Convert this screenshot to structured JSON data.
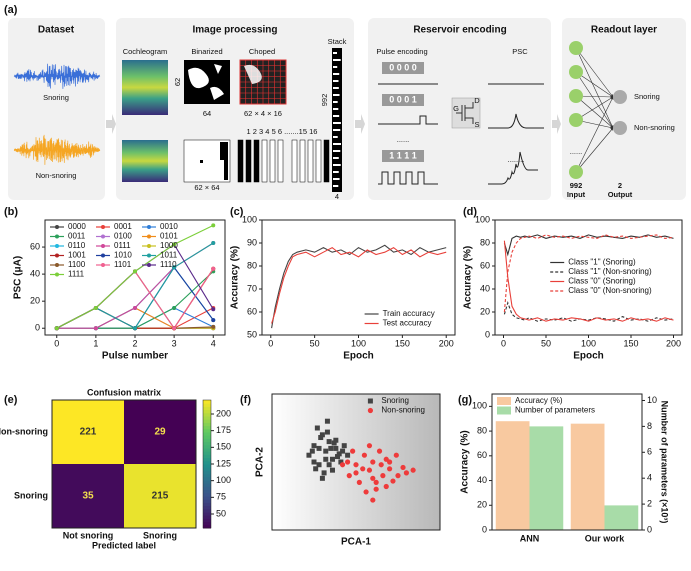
{
  "panel_a": {
    "label": "(a)",
    "dataset": {
      "title": "Dataset",
      "snoring": "Snoring",
      "non_snoring": "Non-snoring"
    },
    "image_processing": {
      "title": "Image processing",
      "cochleogram": "Cochleogram",
      "binarized": "Binarized",
      "choped": "Choped",
      "stack": "Stack",
      "dim_62": "62",
      "dim_64": "64",
      "shape_chopped": "62 × 4 × 16",
      "shape_binarized": "62 × 64",
      "chunks": "1 2 3 4 5 6 .......15 16",
      "stack_height": "992",
      "stack_width": "4"
    },
    "reservoir": {
      "title": "Reservoir encoding",
      "pulse_encoding": "Pulse encoding",
      "codes": [
        "0 0 0 0",
        "0 0 0 1",
        "1 1 1 1"
      ],
      "ellipsis": "......",
      "psc": "PSC",
      "gate": "G",
      "drain": "D",
      "source": "S",
      "psc_ellipsis": "........"
    },
    "readout": {
      "title": "Readout layer",
      "outputs": [
        "Snoring",
        "Non-snoring"
      ],
      "input_count": "992",
      "input": "Input",
      "output_count": "2",
      "output": "Output",
      "ellipsis": "......"
    }
  },
  "chart_data": [
    {
      "type": "line",
      "panel": "(b)",
      "xlabel": "Pulse number",
      "ylabel": "PSC (μA)",
      "x": [
        0,
        1,
        2,
        3,
        4
      ],
      "xlim": [
        -0.3,
        4.3
      ],
      "xticks": [
        0,
        1,
        2,
        3,
        4
      ],
      "ylim": [
        -5,
        80
      ],
      "yticks": [
        0,
        20,
        40,
        60
      ],
      "legend": "upper left",
      "series": [
        {
          "name": "0000",
          "color": "#444444",
          "marker": "circle",
          "values": [
            0,
            0,
            0,
            0,
            0
          ]
        },
        {
          "name": "0001",
          "color": "#e8403a",
          "marker": "circle",
          "values": [
            0,
            0,
            0,
            0,
            15
          ]
        },
        {
          "name": "0010",
          "color": "#2f7ed8",
          "marker": "circle",
          "values": [
            0,
            0,
            0,
            15,
            1
          ]
        },
        {
          "name": "0011",
          "color": "#2ca05a",
          "marker": "circle",
          "values": [
            0,
            0,
            0,
            15,
            42
          ]
        },
        {
          "name": "0100",
          "color": "#b070d0",
          "marker": "circle",
          "values": [
            0,
            0,
            15,
            0,
            0
          ]
        },
        {
          "name": "0101",
          "color": "#f08c1a",
          "marker": "circle",
          "values": [
            0,
            0,
            15,
            0,
            44
          ]
        },
        {
          "name": "0110",
          "color": "#22b8e0",
          "marker": "circle",
          "values": [
            0,
            0,
            15,
            45,
            6
          ]
        },
        {
          "name": "0111",
          "color": "#d0489a",
          "marker": "circle",
          "values": [
            0,
            0,
            15,
            45,
            63
          ]
        },
        {
          "name": "1000",
          "color": "#c8c020",
          "marker": "circle",
          "values": [
            0,
            15,
            0,
            0,
            0
          ]
        },
        {
          "name": "1001",
          "color": "#b22222",
          "marker": "circle",
          "values": [
            0,
            15,
            0,
            0,
            44
          ]
        },
        {
          "name": "1010",
          "color": "#1f3f9f",
          "marker": "circle",
          "values": [
            0,
            15,
            0,
            45,
            6
          ]
        },
        {
          "name": "1011",
          "color": "#20a0a0",
          "marker": "circle",
          "values": [
            0,
            15,
            0,
            45,
            63
          ]
        },
        {
          "name": "1100",
          "color": "#8b5a2b",
          "marker": "circle",
          "values": [
            0,
            15,
            42,
            0,
            1
          ]
        },
        {
          "name": "1101",
          "color": "#f06090",
          "marker": "circle",
          "values": [
            0,
            15,
            42,
            0,
            44
          ]
        },
        {
          "name": "1110",
          "color": "#5a2a8a",
          "marker": "circle",
          "values": [
            0,
            15,
            42,
            62,
            14
          ]
        },
        {
          "name": "1111",
          "color": "#7ccf3a",
          "marker": "circle",
          "values": [
            0,
            15,
            42,
            62,
            76
          ]
        }
      ]
    },
    {
      "type": "line",
      "panel": "(c)",
      "xlabel": "Epoch",
      "ylabel": "Accuracy (%)",
      "x": [
        1,
        5,
        10,
        15,
        20,
        25,
        30,
        40,
        50,
        60,
        70,
        80,
        90,
        100,
        110,
        120,
        130,
        140,
        150,
        160,
        170,
        180,
        190,
        200
      ],
      "xlim": [
        -10,
        210
      ],
      "xticks": [
        0,
        50,
        100,
        150,
        200
      ],
      "ylim": [
        50,
        100
      ],
      "yticks": [
        50,
        60,
        70,
        80,
        90,
        100
      ],
      "legend": "lower right",
      "series": [
        {
          "name": "Train accuracy",
          "color": "#444444",
          "values": [
            53,
            62,
            70,
            77,
            82,
            85,
            86,
            87,
            86,
            88,
            86,
            87,
            85,
            88,
            86,
            87,
            89,
            86,
            87,
            85,
            88,
            86,
            87,
            88
          ]
        },
        {
          "name": "Test accuracy",
          "color": "#e8403a",
          "values": [
            55,
            60,
            68,
            75,
            80,
            84,
            85,
            86,
            84,
            86,
            88,
            85,
            86,
            84,
            87,
            85,
            86,
            88,
            85,
            87,
            84,
            86,
            85,
            86
          ]
        }
      ]
    },
    {
      "type": "line",
      "panel": "(d)",
      "xlabel": "Epoch",
      "ylabel": "Accuracy (%)",
      "x": [
        1,
        5,
        10,
        15,
        20,
        25,
        30,
        40,
        50,
        60,
        70,
        80,
        90,
        100,
        110,
        120,
        130,
        140,
        150,
        160,
        170,
        180,
        190,
        200
      ],
      "xlim": [
        -10,
        210
      ],
      "xticks": [
        0,
        50,
        100,
        150,
        200
      ],
      "ylim": [
        0,
        100
      ],
      "yticks": [
        0,
        20,
        40,
        60,
        80,
        100
      ],
      "legend": "center right",
      "series": [
        {
          "name": "Class \"1\" (Snoring)",
          "color": "#333333",
          "dash": false,
          "values": [
            80,
            70,
            84,
            86,
            85,
            86,
            85,
            87,
            84,
            86,
            85,
            86,
            84,
            87,
            85,
            86,
            85,
            84,
            86,
            85,
            87,
            85,
            86,
            84
          ]
        },
        {
          "name": "Class \"1\" (Non-snoring)",
          "color": "#333333",
          "dash": true,
          "values": [
            18,
            28,
            18,
            15,
            14,
            13,
            15,
            12,
            14,
            13,
            15,
            12,
            14,
            13,
            15,
            14,
            12,
            16,
            13,
            14,
            12,
            15,
            13,
            14
          ]
        },
        {
          "name": "Class \"0\" (Snoring)",
          "color": "#e8403a",
          "dash": false,
          "values": [
            82,
            50,
            25,
            18,
            15,
            14,
            13,
            15,
            12,
            14,
            13,
            15,
            14,
            12,
            15,
            13,
            14,
            12,
            15,
            13,
            14,
            12,
            15,
            13
          ]
        },
        {
          "name": "Class \"0\" (Non-snoring)",
          "color": "#e8403a",
          "dash": true,
          "values": [
            20,
            55,
            72,
            80,
            84,
            85,
            86,
            84,
            87,
            85,
            86,
            84,
            86,
            85,
            84,
            87,
            85,
            86,
            84,
            85,
            86,
            87,
            84,
            85
          ]
        }
      ]
    },
    {
      "type": "heatmap",
      "panel": "(e)",
      "title": "Confusion matrix",
      "xlabel": "Predicted label",
      "colormap": "viridis",
      "rows": [
        "Non-snoring",
        "Snoring"
      ],
      "columns": [
        "Not snoring",
        "Snoring"
      ],
      "values": [
        [
          221,
          29
        ],
        [
          35,
          215
        ]
      ],
      "clim": [
        29,
        221
      ],
      "cticks": [
        50,
        75,
        100,
        125,
        150,
        175,
        200
      ]
    },
    {
      "type": "scatter",
      "panel": "(f)",
      "xlabel": "PCA-1",
      "ylabel": "PCA-2",
      "xlim": [
        0,
        100
      ],
      "ylim": [
        0,
        100
      ],
      "legend": "upper right",
      "series": [
        {
          "name": "Snoring",
          "color": "#444444",
          "marker": "square",
          "x": [
            22,
            25,
            28,
            30,
            32,
            34,
            36,
            38,
            40,
            26,
            29,
            33,
            37,
            41,
            24,
            31,
            35,
            39,
            27,
            43,
            30,
            34,
            38,
            28,
            32,
            36,
            42,
            25,
            45,
            33
          ],
          "y": [
            55,
            62,
            48,
            70,
            58,
            65,
            52,
            60,
            56,
            45,
            68,
            72,
            64,
            50,
            58,
            42,
            60,
            54,
            75,
            62,
            38,
            48,
            66,
            60,
            52,
            44,
            58,
            50,
            55,
            80
          ]
        },
        {
          "name": "Non-snoring",
          "color": "#ee3b3b",
          "marker": "circle",
          "x": [
            45,
            50,
            55,
            60,
            65,
            70,
            75,
            48,
            52,
            58,
            62,
            68,
            72,
            78,
            54,
            60,
            66,
            46,
            56,
            64,
            70,
            80,
            50,
            58,
            62,
            74,
            68,
            42,
            84,
            60
          ],
          "y": [
            50,
            42,
            55,
            38,
            48,
            45,
            40,
            58,
            35,
            62,
            30,
            52,
            36,
            46,
            45,
            50,
            40,
            40,
            28,
            58,
            50,
            42,
            48,
            44,
            35,
            55,
            32,
            48,
            44,
            22
          ]
        }
      ]
    },
    {
      "type": "bar",
      "panel": "(g)",
      "ylabel": "Accuracy (%)",
      "y2label": "Number of parameters (×10³)",
      "categories": [
        "ANN",
        "Our work"
      ],
      "ylim": [
        0,
        110
      ],
      "yticks": [
        0,
        20,
        40,
        60,
        80,
        100
      ],
      "y2lim": [
        0,
        10.5
      ],
      "y2ticks": [
        0,
        2,
        4,
        6,
        8,
        10
      ],
      "legend": "upper left",
      "series": [
        {
          "name": "Accuracy (%)",
          "color": "#f8c9a0",
          "values": [
            88,
            86
          ]
        },
        {
          "name": "Number of parameters",
          "color": "#a8dca8",
          "axis": "y2",
          "values": [
            8.0,
            1.9
          ]
        }
      ]
    }
  ]
}
